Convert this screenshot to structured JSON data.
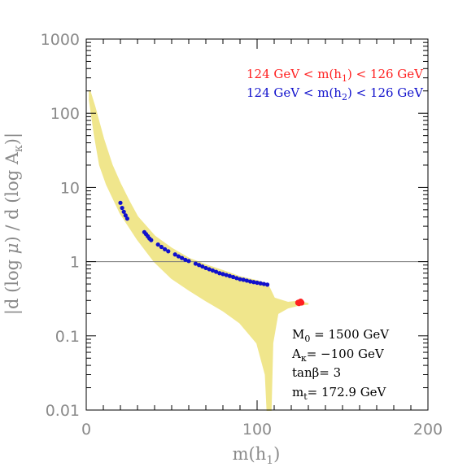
{
  "chart_data": {
    "type": "scatter",
    "xlabel_main": "m(h",
    "xlabel_sub": "1",
    "xlabel_end": ")",
    "ylabel": "|d (log μ) / d (log Aκ)|",
    "ylabel_parts": [
      "|d (log ",
      "μ",
      ") / d (log A",
      "κ",
      ")|"
    ],
    "xlim": [
      0,
      200
    ],
    "ylim": [
      0.01,
      1000
    ],
    "yscale": "log",
    "x_ticks": [
      0,
      100,
      200
    ],
    "x_tick_labels": [
      "0",
      "100",
      "200"
    ],
    "y_ticks": [
      0.01,
      0.1,
      1,
      10,
      100,
      1000
    ],
    "y_tick_labels": [
      "0.01",
      "0.1",
      "1",
      "10",
      "100",
      "1000"
    ],
    "reference_line_y": 1,
    "colors": {
      "allowed_region": "#f0e68c",
      "h1_125": "#ff2020",
      "h2_125": "#1010cc",
      "axis": "#000000",
      "labels": "#8a8a8a"
    },
    "legend": [
      {
        "text_pre": "124 GeV < m(h",
        "sub": "1",
        "text_post": ") < 126 GeV",
        "color": "#ff2020"
      },
      {
        "text_pre": "124 GeV < m(h",
        "sub": "2",
        "text_post": ") < 126 GeV",
        "color": "#1010cc"
      }
    ],
    "parameters": [
      {
        "pre": "M",
        "sub": "0",
        "post": " = 1500 GeV"
      },
      {
        "pre": "A",
        "sub": "κ",
        "post": "= −100 GeV"
      },
      {
        "pre": "tanβ= 3",
        "sub": "",
        "post": ""
      },
      {
        "pre": "m",
        "sub": "t",
        "post": "= 172.9 GeV"
      }
    ],
    "series": [
      {
        "region": "allowed",
        "upper_edge": [
          [
            2,
            200
          ],
          [
            5,
            120
          ],
          [
            10,
            45
          ],
          [
            15,
            20
          ],
          [
            20,
            11
          ],
          [
            25,
            6.5
          ],
          [
            30,
            4
          ],
          [
            40,
            2.2
          ],
          [
            50,
            1.5
          ],
          [
            60,
            1.1
          ],
          [
            70,
            0.9
          ],
          [
            80,
            0.75
          ],
          [
            90,
            0.62
          ],
          [
            100,
            0.55
          ],
          [
            106,
            0.5
          ],
          [
            110,
            0.32
          ],
          [
            118,
            0.28
          ],
          [
            124,
            0.29
          ],
          [
            130,
            0.27
          ]
        ],
        "lower_edge": [
          [
            130,
            0.27
          ],
          [
            124,
            0.26
          ],
          [
            118,
            0.24
          ],
          [
            112,
            0.2
          ],
          [
            109,
            0.08
          ],
          [
            108,
            0.01
          ],
          [
            106,
            0.01
          ],
          [
            105,
            0.03
          ],
          [
            100,
            0.08
          ],
          [
            90,
            0.15
          ],
          [
            80,
            0.22
          ],
          [
            70,
            0.3
          ],
          [
            60,
            0.42
          ],
          [
            50,
            0.6
          ],
          [
            40,
            1
          ],
          [
            30,
            2
          ],
          [
            20,
            4.5
          ],
          [
            12,
            11
          ],
          [
            8,
            20
          ],
          [
            5,
            50
          ],
          [
            2,
            150
          ]
        ]
      },
      {
        "region": "h2_125",
        "points": [
          [
            20,
            6.2
          ],
          [
            21,
            5.3
          ],
          [
            22,
            4.7
          ],
          [
            23,
            4.2
          ],
          [
            24,
            3.8
          ],
          [
            34,
            2.5
          ],
          [
            35,
            2.35
          ],
          [
            36,
            2.2
          ],
          [
            37,
            2.05
          ],
          [
            38,
            1.95
          ],
          [
            42,
            1.7
          ],
          [
            44,
            1.58
          ],
          [
            46,
            1.47
          ],
          [
            48,
            1.38
          ],
          [
            52,
            1.25
          ],
          [
            54,
            1.18
          ],
          [
            56,
            1.12
          ],
          [
            58,
            1.06
          ],
          [
            60,
            1.02
          ],
          [
            64,
            0.94
          ],
          [
            66,
            0.9
          ],
          [
            68,
            0.86
          ],
          [
            70,
            0.82
          ],
          [
            72,
            0.79
          ],
          [
            74,
            0.76
          ],
          [
            76,
            0.73
          ],
          [
            78,
            0.7
          ],
          [
            80,
            0.68
          ],
          [
            82,
            0.66
          ],
          [
            84,
            0.64
          ],
          [
            86,
            0.62
          ],
          [
            88,
            0.6
          ],
          [
            90,
            0.58
          ],
          [
            92,
            0.57
          ],
          [
            94,
            0.555
          ],
          [
            96,
            0.54
          ],
          [
            98,
            0.53
          ],
          [
            100,
            0.52
          ],
          [
            102,
            0.51
          ],
          [
            104,
            0.5
          ],
          [
            106,
            0.49
          ]
        ]
      },
      {
        "region": "h1_125",
        "points": [
          [
            124,
            0.28
          ],
          [
            125,
            0.285
          ],
          [
            126,
            0.28
          ],
          [
            124.5,
            0.275
          ],
          [
            125.5,
            0.29
          ]
        ]
      }
    ]
  }
}
